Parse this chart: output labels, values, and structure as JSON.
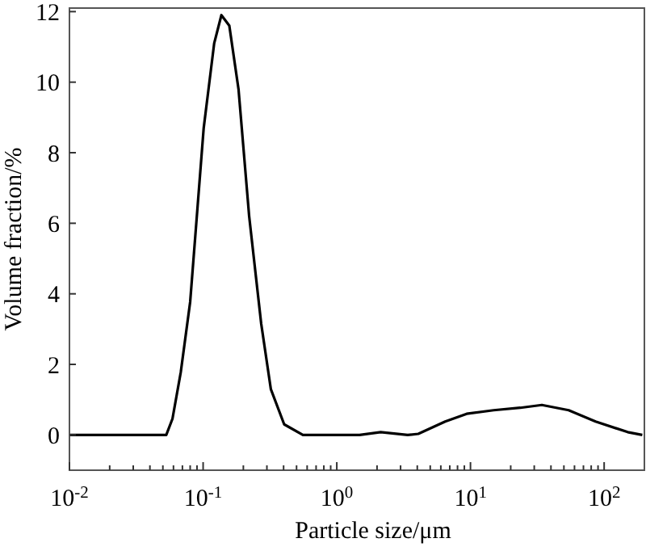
{
  "chart_data": {
    "type": "line",
    "xlabel": "Particle size/μm",
    "ylabel": "Volume fraction/%",
    "log": "x",
    "xlim": [
      0.01,
      200
    ],
    "ylim": [
      -1,
      12.1
    ],
    "xticks": [
      {
        "value": 0.01,
        "label": "10$^{-2}$"
      },
      {
        "value": 0.02,
        "label": null
      },
      {
        "value": 0.03,
        "label": null
      },
      {
        "value": 0.04,
        "label": null
      },
      {
        "value": 0.05,
        "label": null
      },
      {
        "value": 0.06,
        "label": null
      },
      {
        "value": 0.07,
        "label": null
      },
      {
        "value": 0.08,
        "label": null
      },
      {
        "value": 0.09,
        "label": null
      },
      {
        "value": 0.1,
        "label": "10$^{-1}$"
      },
      {
        "value": 0.2,
        "label": null
      },
      {
        "value": 0.3,
        "label": null
      },
      {
        "value": 0.4,
        "label": null
      },
      {
        "value": 0.5,
        "label": null
      },
      {
        "value": 0.6,
        "label": null
      },
      {
        "value": 0.7,
        "label": null
      },
      {
        "value": 0.8,
        "label": null
      },
      {
        "value": 0.9,
        "label": null
      },
      {
        "value": 1,
        "label": "10$^{0}$"
      },
      {
        "value": 2,
        "label": null
      },
      {
        "value": 3,
        "label": null
      },
      {
        "value": 4,
        "label": null
      },
      {
        "value": 5,
        "label": null
      },
      {
        "value": 6,
        "label": null
      },
      {
        "value": 7,
        "label": null
      },
      {
        "value": 8,
        "label": null
      },
      {
        "value": 9,
        "label": null
      },
      {
        "value": 10,
        "label": "10$^{1}$"
      },
      {
        "value": 20,
        "label": null
      },
      {
        "value": 30,
        "label": null
      },
      {
        "value": 40,
        "label": null
      },
      {
        "value": 50,
        "label": null
      },
      {
        "value": 60,
        "label": null
      },
      {
        "value": 70,
        "label": null
      },
      {
        "value": 80,
        "label": null
      },
      {
        "value": 90,
        "label": null
      },
      {
        "value": 100,
        "label": "10$^{2}$"
      }
    ],
    "yticks": [
      0,
      2,
      4,
      6,
      8,
      10,
      12
    ],
    "series": [
      {
        "color": "#000000",
        "x": [
          0.01,
          0.053,
          0.059,
          0.068,
          0.08,
          0.101,
          0.121,
          0.137,
          0.157,
          0.184,
          0.221,
          0.272,
          0.321,
          0.404,
          0.558,
          1.48,
          2.13,
          3.39,
          4.07,
          6.47,
          9.37,
          14.9,
          23.6,
          34.2,
          54.3,
          86.3,
          150,
          193
        ],
        "values": [
          0,
          0,
          0.46,
          1.77,
          3.77,
          8.7,
          11.1,
          11.9,
          11.6,
          9.8,
          6.2,
          3.15,
          1.3,
          0.3,
          0,
          0,
          0.08,
          0,
          0.03,
          0.38,
          0.6,
          0.7,
          0.77,
          0.85,
          0.7,
          0.38,
          0.08,
          0
        ]
      }
    ]
  }
}
